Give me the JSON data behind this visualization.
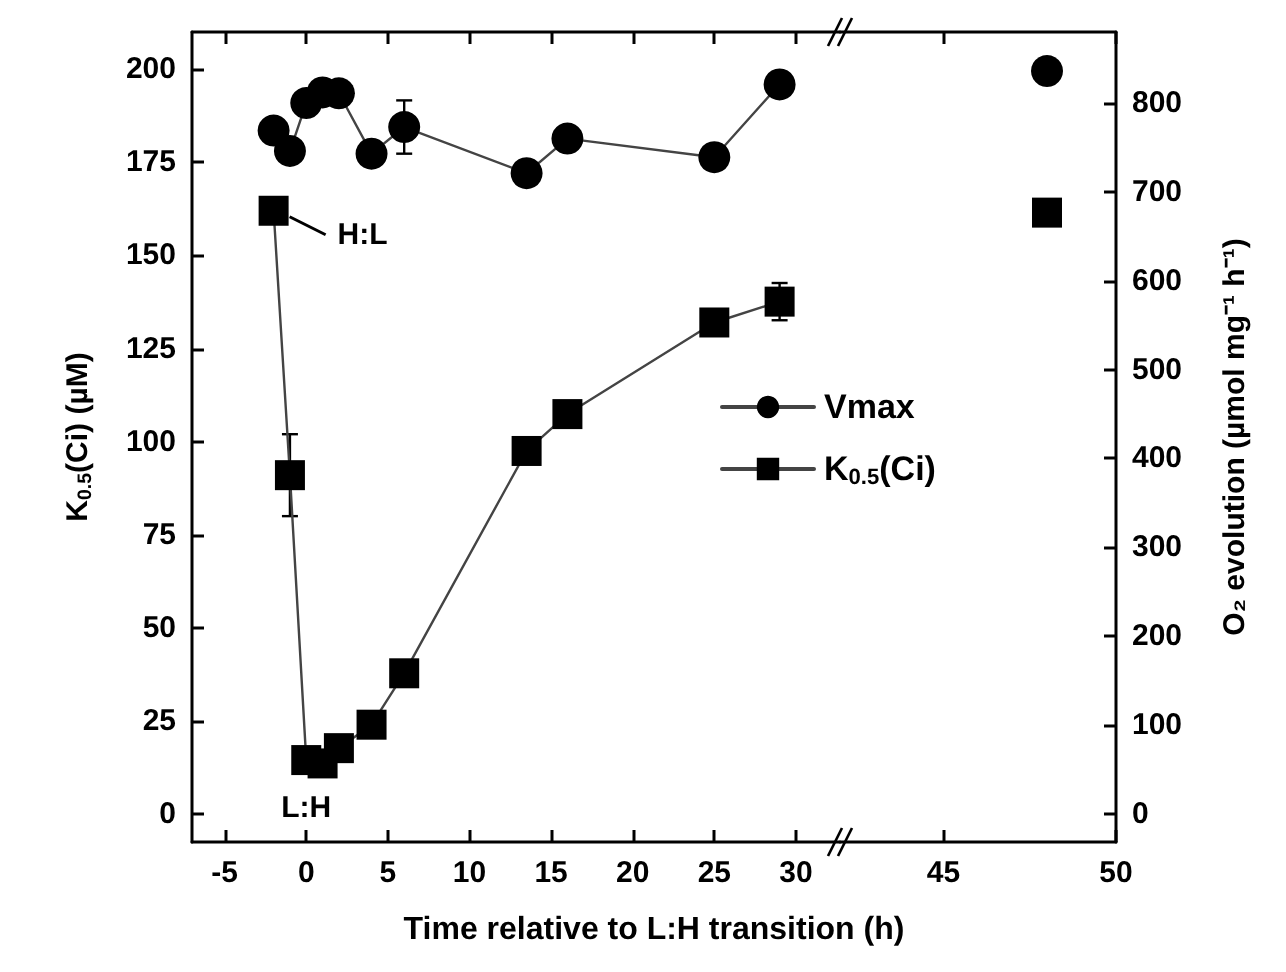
{
  "chart_data": [
    {
      "type": "line",
      "xlabel": "Time relative to L:H transition (h)",
      "ylabel": "K$_{0.5}$(Ci) (µM)",
      "x": [
        -2,
        -1,
        0,
        1,
        2,
        4,
        6,
        13.5,
        16,
        25,
        29
      ],
      "series": [
        {
          "name": "Vmax",
          "color": "#000000",
          "marker": "circle",
          "axis": "y2",
          "values": [
            769,
            746,
            800,
            812,
            811,
            743,
            773,
            721,
            760,
            739,
            821
          ],
          "errors": [
            null,
            null,
            null,
            null,
            null,
            null,
            30,
            null,
            null,
            null,
            null
          ]
        },
        {
          "name": "K$_{0.5}$(Ci)",
          "color": "#000000",
          "marker": "square",
          "values": [
            162,
            91,
            14.5,
            13.6,
            17.7,
            24,
            37.8,
            97.5,
            107.4,
            132,
            137.6
          ],
          "errors": [
            null,
            11,
            null,
            null,
            null,
            null,
            null,
            null,
            null,
            null,
            5
          ]
        }
      ],
      "xlim": [
        -7,
        32.7
      ],
      "xticks": [
        -5,
        0,
        5,
        10,
        15,
        20,
        25,
        30
      ],
      "ylim": [
        -7.5,
        210
      ],
      "yticks": [
        0,
        25,
        50,
        75,
        100,
        125,
        150,
        175,
        200
      ],
      "y2lim": [
        -32,
        880
      ],
      "tick_labels": "xy",
      "annotations": [
        {
          "text": "H:L",
          "x": -2,
          "y": 162
        },
        {
          "text": "L:H",
          "x": 0,
          "y": 14.5
        }
      ],
      "legend": "right"
    },
    {
      "type": "line",
      "y2label": "O₂ evolution (µmol mg⁻¹ h⁻¹)",
      "x": [
        48
      ],
      "series": [
        {
          "color": "#000000",
          "marker": "circle",
          "axis": "y2",
          "values": [
            836
          ]
        },
        {
          "color": "#000000",
          "marker": "square",
          "values": [
            161.5
          ]
        }
      ],
      "xlim": [
        42,
        50
      ],
      "xticks": [
        45,
        50
      ],
      "ylim": [
        -7.5,
        210
      ],
      "y2lim": [
        -32,
        880
      ],
      "y2ticks": [
        0,
        100,
        200,
        300,
        400,
        500,
        600,
        700,
        800
      ],
      "tick_labels": "xy2"
    }
  ]
}
